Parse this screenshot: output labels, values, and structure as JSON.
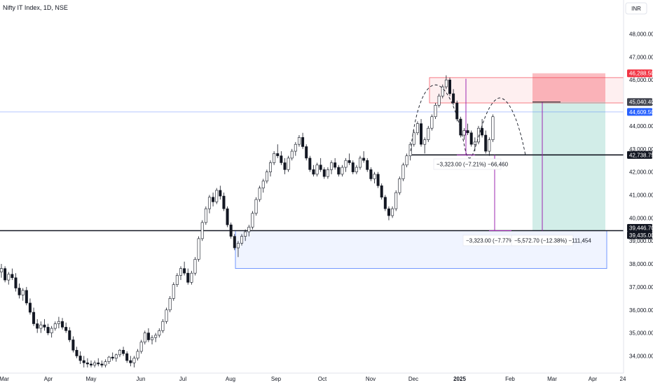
{
  "header": {
    "title": "Nifty IT Index, 1D, NSE",
    "currency": "INR"
  },
  "chart_data": {
    "type": "candlestick",
    "symbol": "Nifty IT Index",
    "interval": "1D",
    "exchange": "NSE",
    "currency": "INR",
    "ylim": [
      33500,
      48900
    ],
    "price_ticks": [
      {
        "value": 34000,
        "label": "34,000.00"
      },
      {
        "value": 35000,
        "label": "35,000.00"
      },
      {
        "value": 36000,
        "label": "36,000.00"
      },
      {
        "value": 37000,
        "label": "37,000.00"
      },
      {
        "value": 38000,
        "label": "38,000.00"
      },
      {
        "value": 39000,
        "label": "39,000.00"
      },
      {
        "value": 40000,
        "label": "40,000.00"
      },
      {
        "value": 41000,
        "label": "41,000.00"
      },
      {
        "value": 42000,
        "label": "42,000.00"
      },
      {
        "value": 43000,
        "label": "43,000.00"
      },
      {
        "value": 44000,
        "label": "44,000.00"
      },
      {
        "value": 45000,
        "label": "45,000.00"
      },
      {
        "value": 46000,
        "label": "46,000.00"
      },
      {
        "value": 47000,
        "label": "47,000.00"
      },
      {
        "value": 48000,
        "label": "48,000.00"
      }
    ],
    "time_ticks": [
      {
        "label": "Mar",
        "bold": false
      },
      {
        "label": "Apr",
        "bold": false
      },
      {
        "label": "May",
        "bold": false
      },
      {
        "label": "Jun",
        "bold": false
      },
      {
        "label": "Jul",
        "bold": false
      },
      {
        "label": "Aug",
        "bold": false
      },
      {
        "label": "Sep",
        "bold": false
      },
      {
        "label": "Oct",
        "bold": false
      },
      {
        "label": "Nov",
        "bold": false
      },
      {
        "label": "Dec",
        "bold": false
      },
      {
        "label": "2025",
        "bold": true
      },
      {
        "label": "Feb",
        "bold": false
      },
      {
        "label": "Mar",
        "bold": false
      },
      {
        "label": "Apr",
        "bold": false
      },
      {
        "label": "24",
        "bold": false
      }
    ],
    "candles": [
      [
        37650,
        38000,
        37400,
        37800
      ],
      [
        37800,
        37900,
        37200,
        37300
      ],
      [
        37300,
        37650,
        37100,
        37550
      ],
      [
        37550,
        37800,
        37300,
        37400
      ],
      [
        37400,
        37600,
        36800,
        36950
      ],
      [
        36950,
        37150,
        36500,
        36650
      ],
      [
        36650,
        36950,
        36400,
        36850
      ],
      [
        36850,
        37000,
        36200,
        36300
      ],
      [
        36300,
        36500,
        35800,
        35900
      ],
      [
        35900,
        36100,
        35300,
        35400
      ],
      [
        35400,
        35600,
        35000,
        35200
      ],
      [
        35200,
        35500,
        35000,
        35350
      ],
      [
        35350,
        35600,
        35100,
        35250
      ],
      [
        35250,
        35400,
        34900,
        35000
      ],
      [
        35000,
        35300,
        34800,
        35200
      ],
      [
        35200,
        35500,
        35100,
        35400
      ],
      [
        35400,
        35700,
        35200,
        35500
      ],
      [
        35500,
        35650,
        35150,
        35250
      ],
      [
        35250,
        35450,
        35000,
        35100
      ],
      [
        35100,
        35250,
        34600,
        34700
      ],
      [
        34700,
        34850,
        34150,
        34250
      ],
      [
        34250,
        34400,
        33900,
        34000
      ],
      [
        34000,
        34200,
        33650,
        33800
      ],
      [
        33800,
        34000,
        33500,
        33700
      ],
      [
        33700,
        33900,
        33500,
        33650
      ],
      [
        33650,
        33800,
        33500,
        33600
      ],
      [
        33600,
        33800,
        33500,
        33700
      ],
      [
        33700,
        33900,
        33550,
        33650
      ],
      [
        33650,
        33800,
        33500,
        33600
      ],
      [
        33600,
        33850,
        33500,
        33750
      ],
      [
        33750,
        34000,
        33650,
        33950
      ],
      [
        33950,
        34150,
        33800,
        33900
      ],
      [
        33900,
        34100,
        33750,
        34050
      ],
      [
        34050,
        34300,
        33950,
        34250
      ],
      [
        34250,
        34400,
        34000,
        34100
      ],
      [
        34100,
        34200,
        33700,
        33800
      ],
      [
        33800,
        34000,
        33550,
        33700
      ],
      [
        33700,
        34000,
        33500,
        33900
      ],
      [
        33900,
        34300,
        33800,
        34200
      ],
      [
        34200,
        34700,
        34100,
        34600
      ],
      [
        34600,
        35100,
        34500,
        35000
      ],
      [
        35000,
        35200,
        34600,
        34700
      ],
      [
        34700,
        34900,
        34500,
        34800
      ],
      [
        34800,
        35000,
        34600,
        34900
      ],
      [
        34900,
        35200,
        34800,
        35100
      ],
      [
        35100,
        35600,
        35000,
        35500
      ],
      [
        35500,
        36100,
        35400,
        36000
      ],
      [
        36000,
        36600,
        35900,
        36500
      ],
      [
        36500,
        37200,
        36400,
        37100
      ],
      [
        37100,
        37600,
        37000,
        37500
      ],
      [
        37500,
        37900,
        37300,
        37800
      ],
      [
        37800,
        38100,
        37500,
        37600
      ],
      [
        37600,
        37800,
        37100,
        37200
      ],
      [
        37200,
        37700,
        37100,
        37600
      ],
      [
        37600,
        38300,
        37500,
        38200
      ],
      [
        38200,
        39200,
        38100,
        39100
      ],
      [
        39100,
        39900,
        39000,
        39800
      ],
      [
        39800,
        40500,
        39700,
        40400
      ],
      [
        40400,
        41000,
        40200,
        40900
      ],
      [
        40900,
        41100,
        40500,
        40700
      ],
      [
        40700,
        41300,
        40600,
        41200
      ],
      [
        41200,
        41400,
        40800,
        40950
      ],
      [
        40950,
        41100,
        40300,
        40400
      ],
      [
        40400,
        40500,
        39600,
        39700
      ],
      [
        39700,
        39800,
        39100,
        39200
      ],
      [
        39200,
        39300,
        38600,
        38700
      ],
      [
        38700,
        39000,
        38300,
        38900
      ],
      [
        38900,
        39300,
        38800,
        39200
      ],
      [
        39200,
        39500,
        39000,
        39400
      ],
      [
        39400,
        39700,
        39200,
        39600
      ],
      [
        39600,
        40300,
        39500,
        40200
      ],
      [
        40200,
        40900,
        40100,
        40800
      ],
      [
        40800,
        41400,
        40700,
        41300
      ],
      [
        41300,
        41700,
        41100,
        41600
      ],
      [
        41600,
        42100,
        41500,
        42000
      ],
      [
        42000,
        42500,
        41800,
        42400
      ],
      [
        42400,
        42900,
        42300,
        42800
      ],
      [
        42800,
        43200,
        42600,
        42700
      ],
      [
        42700,
        42900,
        42300,
        42400
      ],
      [
        42400,
        42600,
        41900,
        42100
      ],
      [
        42100,
        42700,
        42000,
        42600
      ],
      [
        42600,
        43000,
        42500,
        42900
      ],
      [
        42900,
        43300,
        42700,
        43200
      ],
      [
        43200,
        43600,
        43100,
        43500
      ],
      [
        43500,
        43700,
        43000,
        43100
      ],
      [
        43100,
        43200,
        42500,
        42600
      ],
      [
        42600,
        42700,
        42000,
        42100
      ],
      [
        42100,
        42300,
        41800,
        41900
      ],
      [
        41900,
        42400,
        41800,
        42300
      ],
      [
        42300,
        42600,
        42000,
        42100
      ],
      [
        42100,
        42200,
        41700,
        41800
      ],
      [
        41800,
        42200,
        41700,
        42100
      ],
      [
        42100,
        42500,
        41900,
        42400
      ],
      [
        42400,
        42600,
        42100,
        42200
      ],
      [
        42200,
        42300,
        41800,
        41900
      ],
      [
        41900,
        42300,
        41800,
        42200
      ],
      [
        42200,
        42600,
        42000,
        42500
      ],
      [
        42500,
        42800,
        42300,
        42400
      ],
      [
        42400,
        42500,
        41900,
        42000
      ],
      [
        42000,
        42300,
        41900,
        42200
      ],
      [
        42200,
        42700,
        42100,
        42600
      ],
      [
        42600,
        42900,
        42400,
        42500
      ],
      [
        42500,
        42600,
        42000,
        42100
      ],
      [
        42100,
        42200,
        41600,
        41700
      ],
      [
        41700,
        42000,
        41500,
        41900
      ],
      [
        41900,
        42000,
        41300,
        41400
      ],
      [
        41400,
        41500,
        40800,
        40900
      ],
      [
        40900,
        41000,
        40300,
        40400
      ],
      [
        40400,
        40500,
        39900,
        40100
      ],
      [
        40100,
        40500,
        40000,
        40400
      ],
      [
        40400,
        41200,
        40300,
        41100
      ],
      [
        41100,
        41800,
        41000,
        41700
      ],
      [
        41700,
        42400,
        41600,
        42300
      ],
      [
        42300,
        42800,
        42200,
        42700
      ],
      [
        42700,
        43300,
        42500,
        43200
      ],
      [
        43200,
        43800,
        43100,
        43700
      ],
      [
        43700,
        44200,
        43600,
        44100
      ],
      [
        44100,
        44300,
        43100,
        43200
      ],
      [
        43200,
        43500,
        42800,
        43400
      ],
      [
        43400,
        44000,
        43300,
        43900
      ],
      [
        43900,
        44500,
        43800,
        44400
      ],
      [
        44400,
        45000,
        44300,
        44900
      ],
      [
        44900,
        45400,
        44800,
        45300
      ],
      [
        45300,
        45800,
        45200,
        45700
      ],
      [
        45700,
        46200,
        45600,
        46000
      ],
      [
        46000,
        46100,
        45300,
        45400
      ],
      [
        45400,
        45600,
        44900,
        45000
      ],
      [
        45000,
        45100,
        44200,
        44300
      ],
      [
        44300,
        44400,
        43500,
        43600
      ],
      [
        43600,
        43900,
        43400,
        43800
      ],
      [
        43800,
        44100,
        43600,
        43700
      ],
      [
        43700,
        43800,
        43100,
        43200
      ],
      [
        43200,
        43500,
        42900,
        43300
      ],
      [
        43300,
        44000,
        43200,
        43900
      ],
      [
        43900,
        44300,
        43500,
        43600
      ],
      [
        43600,
        43800,
        42800,
        42900
      ],
      [
        42900,
        43500,
        42700,
        43400
      ],
      [
        43400,
        44500,
        43300,
        44400
      ]
    ],
    "current_price": {
      "value": 44609.5,
      "label": "44,609.50"
    },
    "horizontal_lines": [
      {
        "value": 42738.75,
        "label": "42,738.75"
      },
      {
        "value": 39446.7,
        "label": "39,446.70"
      }
    ],
    "price_tags": [
      {
        "value": 46288.5,
        "label": "46,288.50",
        "color": "#f23645"
      },
      {
        "value": 45040.4,
        "label": "45,040.40",
        "color": "#434651"
      },
      {
        "value": 44609.5,
        "label": "44,609.50",
        "color": "#2962ff"
      },
      {
        "value": 42738.75,
        "label": "42,738.75",
        "color": "#131722"
      },
      {
        "value": 39446.7,
        "label": "39,446.70",
        "color": "#131722"
      },
      {
        "value": 39435.0,
        "label": "39,435.00",
        "color": "#131722"
      }
    ],
    "zones": [
      {
        "name": "resistance-zone",
        "top": 46100,
        "bottom": 45000,
        "color": "#f23645"
      },
      {
        "name": "support-zone",
        "top": 39450,
        "bottom": 37800,
        "color": "#2962ff"
      },
      {
        "name": "position-stop",
        "top": 46288.5,
        "bottom": 45040.4,
        "color": "#f23645"
      },
      {
        "name": "position-target",
        "top": 45040.4,
        "bottom": 39435.0,
        "color": "#089981"
      }
    ],
    "measurements": [
      {
        "label": "−3,323.00 (−7.21%) −66,460"
      },
      {
        "label": "−3,323.00 (−7.77%) −6"
      },
      {
        "label": "−5,572.70 (−12.38%) −111,454"
      }
    ],
    "colors": {
      "up": "#089981",
      "down": "#131722",
      "current_line": "#2962ff",
      "measure": "#9c27b0"
    }
  }
}
